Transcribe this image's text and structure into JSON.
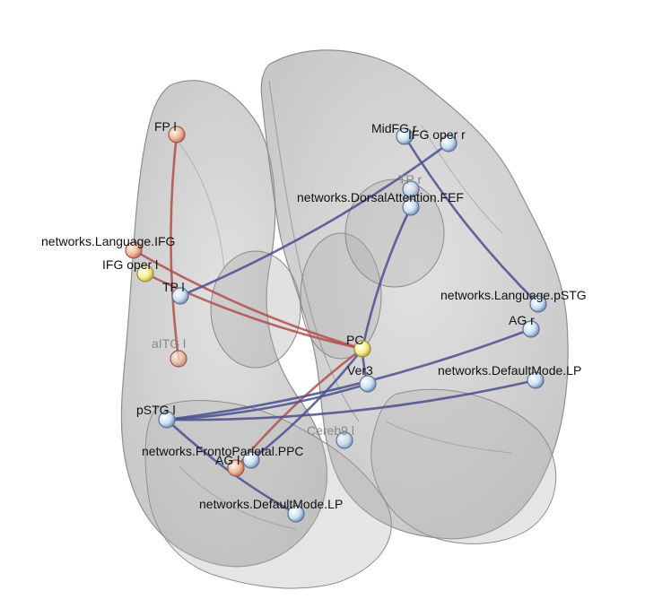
{
  "colors": {
    "background": "#ffffff",
    "brain_fill": "#b8b8b8",
    "brain_stroke": "#8c8c8c",
    "edge_positive": "#b0504a",
    "edge_negative": "#4a4f8f",
    "node_warm": "#f2c2a8",
    "node_cool": "#cfe3f2",
    "node_yellow": "#f3ef96"
  },
  "nodes": [
    {
      "id": "fp_l",
      "label": "FP l",
      "kind": "warm",
      "dim": false
    },
    {
      "id": "midfg_r",
      "label": "MidFG r",
      "kind": "cool",
      "dim": false
    },
    {
      "id": "ifg_oper_r",
      "label": "IFG oper r",
      "kind": "cool",
      "dim": false
    },
    {
      "id": "tp_r",
      "label": "TP r",
      "kind": "cool",
      "dim": true
    },
    {
      "id": "dorsal_fef",
      "label": "networks.DorsalAttention.FEF",
      "kind": "cool",
      "dim": false
    },
    {
      "id": "lang_ifg",
      "label": "networks.Language.IFG",
      "kind": "warm",
      "dim": false
    },
    {
      "id": "ifg_oper_l",
      "label": "IFG oper l",
      "kind": "yellow",
      "dim": false
    },
    {
      "id": "tp_l",
      "label": "TP l",
      "kind": "cool",
      "dim": false
    },
    {
      "id": "lang_pstg",
      "label": "networks.Language.pSTG",
      "kind": "cool",
      "dim": false
    },
    {
      "id": "ag_r",
      "label": "AG r",
      "kind": "cool",
      "dim": false
    },
    {
      "id": "aitg_l",
      "label": "aITG l",
      "kind": "warm",
      "dim": true
    },
    {
      "id": "pc",
      "label": "PC",
      "kind": "yellow",
      "dim": false
    },
    {
      "id": "ver3",
      "label": "Ver3",
      "kind": "cool",
      "dim": false
    },
    {
      "id": "dmn_lp_r",
      "label": "networks.DefaultMode.LP",
      "kind": "cool",
      "dim": false
    },
    {
      "id": "pstg_l",
      "label": "pSTG l",
      "kind": "cool",
      "dim": false
    },
    {
      "id": "cereb9_l",
      "label": "Cereb9 l",
      "kind": "cool",
      "dim": true
    },
    {
      "id": "fp_ppc",
      "label": "networks.FrontoParietal.PPC",
      "kind": "cool",
      "dim": false
    },
    {
      "id": "ag_l",
      "label": "AG l",
      "kind": "warm",
      "dim": false
    },
    {
      "id": "dmn_lp_l",
      "label": "networks.DefaultMode.LP",
      "kind": "cool",
      "dim": false
    }
  ],
  "edges": [
    {
      "from": "fp_l",
      "to": "aitg_l",
      "sign": "positive"
    },
    {
      "from": "lang_ifg",
      "to": "pc",
      "sign": "positive"
    },
    {
      "from": "ifg_oper_l",
      "to": "pc",
      "sign": "positive"
    },
    {
      "from": "pc",
      "to": "ag_l",
      "sign": "positive"
    },
    {
      "from": "tp_l",
      "to": "ifg_oper_r",
      "sign": "negative"
    },
    {
      "from": "midfg_r",
      "to": "lang_pstg",
      "sign": "negative"
    },
    {
      "from": "dorsal_fef",
      "to": "pc",
      "sign": "negative"
    },
    {
      "from": "pc",
      "to": "ver3",
      "sign": "negative"
    },
    {
      "from": "pstg_l",
      "to": "ag_r",
      "sign": "negative"
    },
    {
      "from": "pstg_l",
      "to": "dmn_lp_r",
      "sign": "negative"
    },
    {
      "from": "pstg_l",
      "to": "ver3",
      "sign": "negative"
    },
    {
      "from": "pstg_l",
      "to": "dmn_lp_l",
      "sign": "negative"
    },
    {
      "from": "fp_ppc",
      "to": "pc",
      "sign": "negative"
    }
  ]
}
